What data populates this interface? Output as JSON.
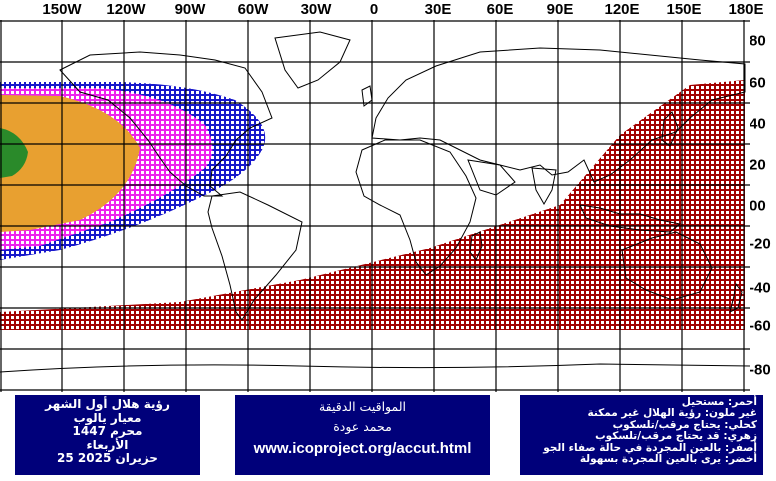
{
  "map": {
    "longitude_labels": [
      "150W",
      "120W",
      "90W",
      "60W",
      "30W",
      "0",
      "30E",
      "60E",
      "90E",
      "120E",
      "150E",
      "180E"
    ],
    "latitude_labels": [
      "80",
      "60",
      "40",
      "20",
      "00",
      "-20",
      "-40",
      "-60",
      "-80"
    ],
    "colors": {
      "red": "#a30000",
      "blue": "#1818cc",
      "magenta": "#ee22ee",
      "orange": "#e8a030",
      "green": "#2a8a2a",
      "grid": "#000000"
    }
  },
  "info_left": {
    "line1": "رؤية هلال أول الشهر",
    "line2": "معيار يالوب",
    "line3": "محرم 1447",
    "line4": "الأربعاء",
    "line5": "حزيران 2025 25"
  },
  "info_mid": {
    "title": "المواقيت الدقيقة",
    "author": "محمد عودة",
    "url": "www.icoproject.org/accut.html"
  },
  "legend": {
    "red": "أحمر: مستحيل",
    "none": "غير ملون: رؤية الهلال غير ممكنة",
    "blue": "كحلي: يحتاج مرقب/تلسكوب",
    "magenta": "زهري: قد يحتاج مرقب/تلسكوب",
    "orange": "أصفر: بالعين المجردة في حالة صفاء الجو",
    "green": "أخضر: يرى بالعين المجردة بسهولة"
  }
}
